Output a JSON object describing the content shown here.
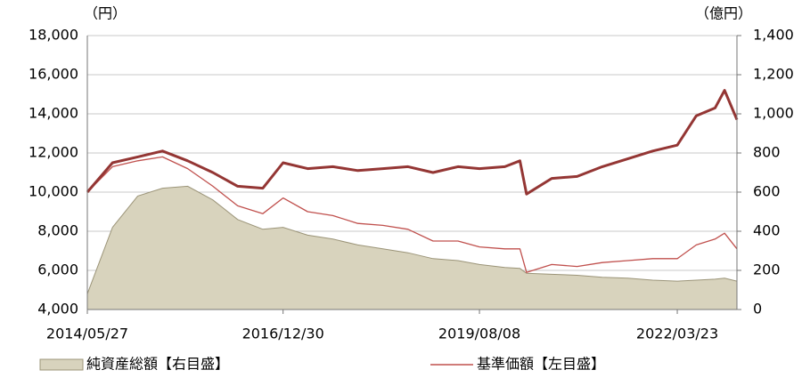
{
  "chart_data": {
    "type": "line",
    "y_label": "（円）",
    "y2_label": "（億円）",
    "x": [
      "2014/05/27",
      "2014/09/26",
      "2015/01/26",
      "2015/05/26",
      "2015/09/25",
      "2016/01/25",
      "2016/05/24",
      "2016/09/23",
      "2016/12/30",
      "2017/04/28",
      "2017/08/28",
      "2017/12/27",
      "2018/04/27",
      "2018/08/27",
      "2018/12/26",
      "2019/04/26",
      "2019/08/08",
      "2019/12/09",
      "2020/02/20",
      "2020/03/23",
      "2020/07/23",
      "2020/11/23",
      "2021/03/25",
      "2021/07/26",
      "2021/11/24",
      "2022/03/23",
      "2022/06/23",
      "2022/09/22",
      "2022/11/07",
      "2023/01/06"
    ],
    "xlim": [
      "2014/05/27",
      "2023/01/06"
    ],
    "xticks": [
      "2014/05/27",
      "2016/12/30",
      "2019/08/08",
      "2022/03/23"
    ],
    "ylim": [
      4000,
      18000
    ],
    "yticks": [
      {
        "value": 4000,
        "label": "4,000"
      },
      {
        "value": 6000,
        "label": "6,000"
      },
      {
        "value": 8000,
        "label": "8,000"
      },
      {
        "value": 10000,
        "label": "10,000"
      },
      {
        "value": 12000,
        "label": "12,000"
      },
      {
        "value": 14000,
        "label": "14,000"
      },
      {
        "value": 16000,
        "label": "16,000"
      },
      {
        "value": 18000,
        "label": "18,000"
      }
    ],
    "y2lim": [
      0,
      1400
    ],
    "y2ticks": [
      0,
      200,
      400,
      600,
      800,
      {
        "value": 1000,
        "label": "1,000"
      },
      {
        "value": 1200,
        "label": "1,200"
      },
      {
        "value": 1400,
        "label": "1,400"
      }
    ],
    "grid": true,
    "legend": "bottom",
    "series": [
      {
        "name": "純資産総額【右目盛】",
        "type": "area",
        "axis": "y2",
        "color": "#d8d3bd",
        "edge": "#9b9478",
        "values": [
          80,
          420,
          580,
          620,
          630,
          560,
          460,
          410,
          420,
          380,
          360,
          330,
          310,
          290,
          260,
          250,
          230,
          215,
          210,
          185,
          180,
          175,
          165,
          160,
          150,
          145,
          150,
          155,
          160,
          145
        ]
      },
      {
        "name": "基準価額【左目盛】",
        "type": "line",
        "color": "#c0504d",
        "values": [
          10000,
          11300,
          11600,
          11800,
          11200,
          10300,
          9300,
          8900,
          9700,
          9000,
          8800,
          8400,
          8300,
          8100,
          7500,
          7500,
          7200,
          7100,
          7100,
          5900,
          6300,
          6200,
          6400,
          6500,
          6600,
          6600,
          7300,
          7600,
          7900,
          7100
        ]
      },
      {
        "type": "line",
        "color": "#943634",
        "values": [
          10000,
          11500,
          11800,
          12100,
          11600,
          11000,
          10300,
          10200,
          11500,
          11200,
          11300,
          11100,
          11200,
          11300,
          11000,
          11300,
          11200,
          11300,
          11600,
          9900,
          10700,
          10800,
          11300,
          11700,
          12100,
          12400,
          13900,
          14300,
          15200,
          13700
        ]
      }
    ]
  }
}
